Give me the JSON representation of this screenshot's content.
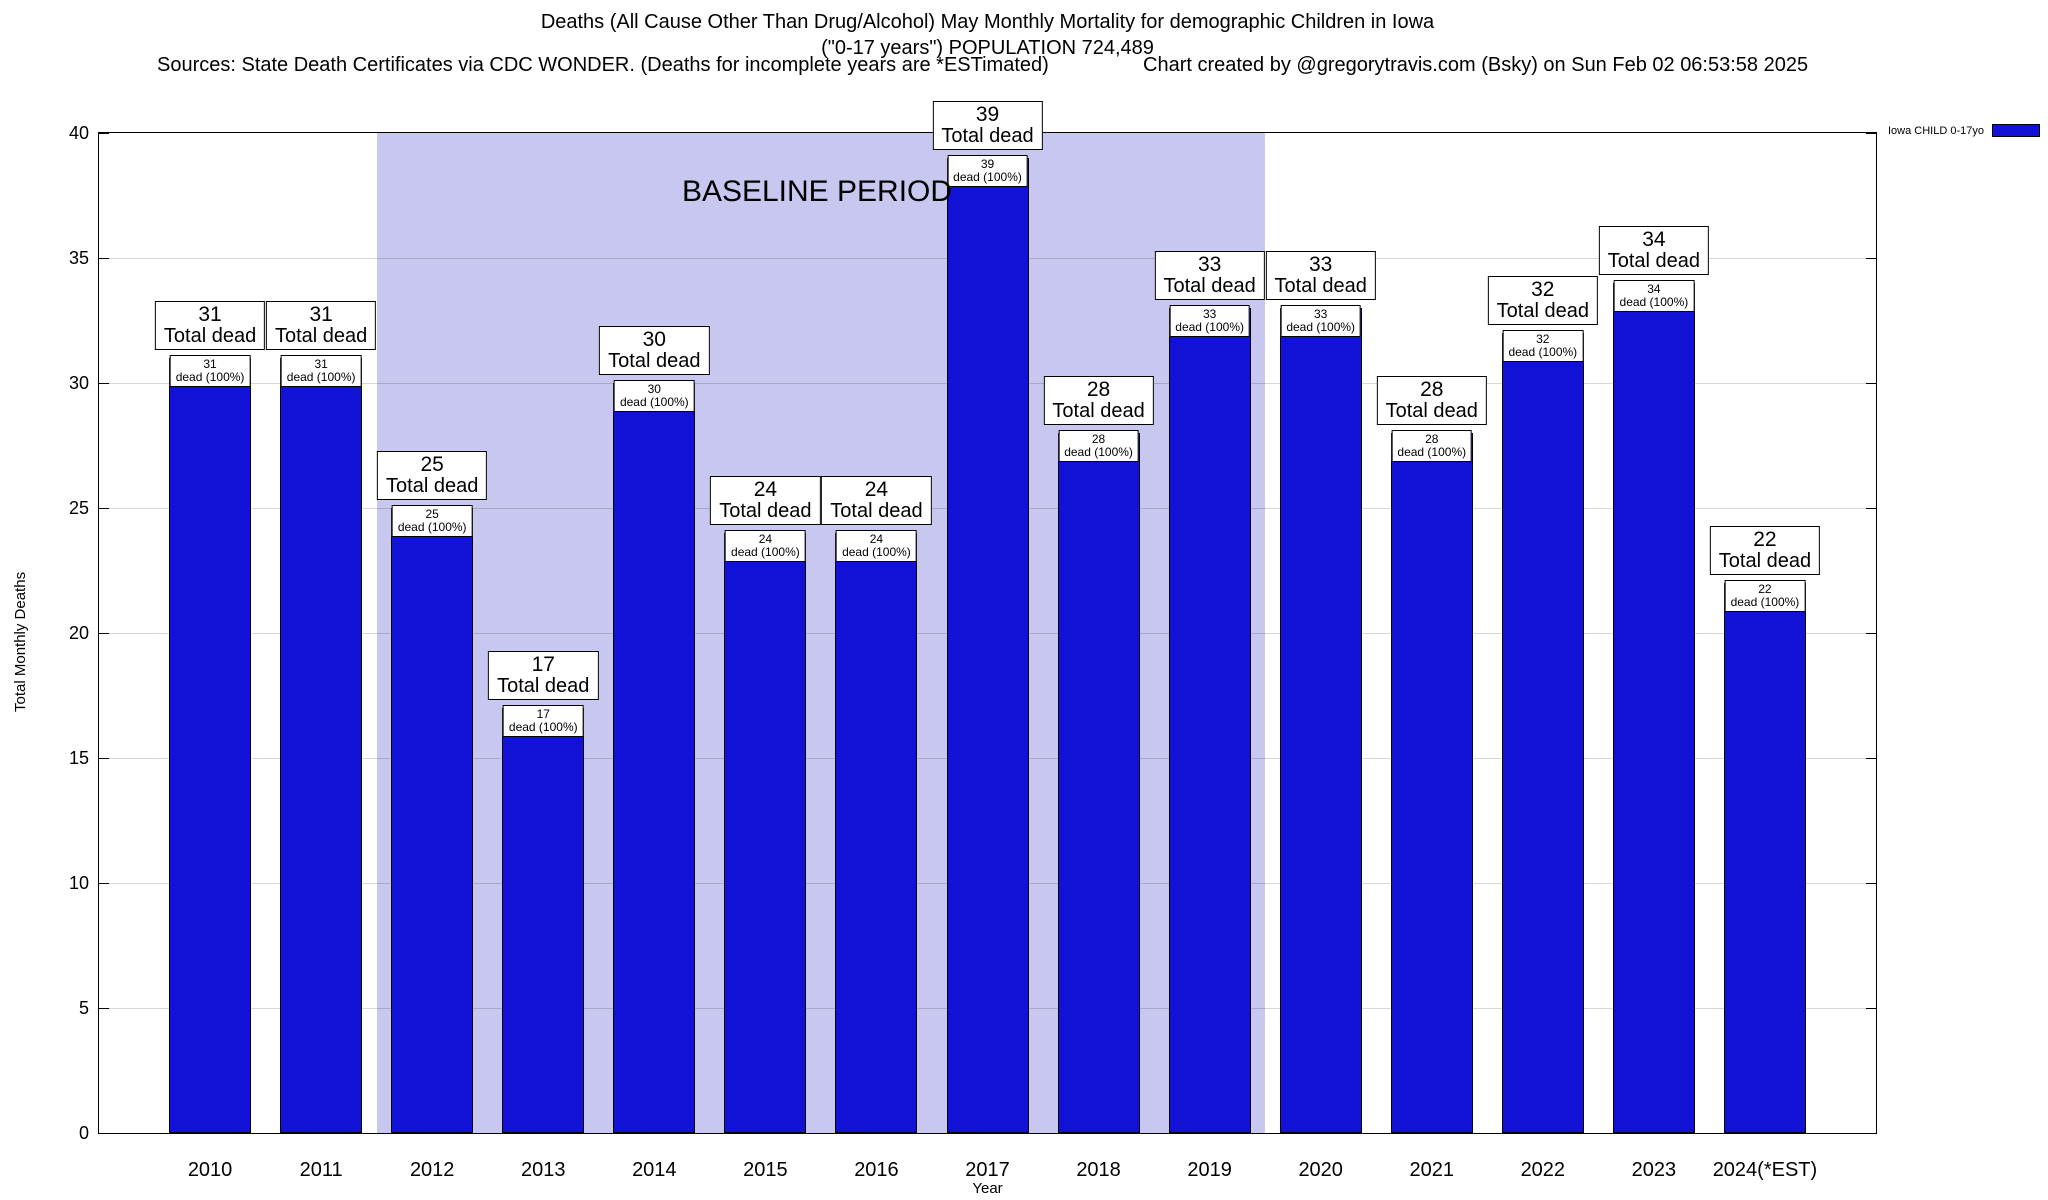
{
  "header": {
    "title_line1": "Deaths (All Cause Other Than Drug/Alcohol) May Monthly Mortality for demographic Children in Iowa",
    "title_line2": "(\"0-17 years\") POPULATION 724,489",
    "sources": "Sources: State Death Certificates via CDC WONDER. (Deaths for incomplete years are *ESTimated)",
    "credit": "Chart created by @gregorytravis.com (Bsky) on Sun Feb 02 06:53:58 2025"
  },
  "legend": {
    "label": "Iowa CHILD 0-17yo",
    "color": "#1212D6"
  },
  "axes": {
    "ylabel": "Total Monthly Deaths",
    "xlabel": "Year",
    "ytick_labels": [
      "0",
      "5",
      "10",
      "15",
      "20",
      "25",
      "30",
      "35",
      "40"
    ],
    "ylim": [
      0,
      40
    ]
  },
  "annotation": {
    "label": "BASELINE PERIOD",
    "region_from_year": "2012",
    "region_to_year": "2019",
    "region_color": "#C7C7F0"
  },
  "bar_labels": {
    "big_suffix": "Total dead",
    "small_suffix": "dead (100%)"
  },
  "chart_data": {
    "type": "bar",
    "title": "Deaths (All Cause Other Than Drug/Alcohol) May Monthly Mortality for demographic Children in Iowa (\"0-17 years\") POPULATION 724,489",
    "categories": [
      "2010",
      "2011",
      "2012",
      "2013",
      "2014",
      "2015",
      "2016",
      "2017",
      "2018",
      "2019",
      "2020",
      "2021",
      "2022",
      "2023",
      "2024(*EST)"
    ],
    "series": [
      {
        "name": "Iowa CHILD 0-17yo",
        "values": [
          31,
          31,
          25,
          17,
          30,
          24,
          24,
          39,
          28,
          33,
          33,
          28,
          32,
          34,
          22
        ]
      }
    ],
    "xlabel": "Year",
    "ylabel": "Total Monthly Deaths",
    "ylim": [
      0,
      40
    ],
    "yticks": [
      0,
      5,
      10,
      15,
      20,
      25,
      30,
      35,
      40
    ],
    "bar_color": "#1212D6",
    "grid": true,
    "legend_position": "top-right",
    "baseline_region": {
      "from": "2012",
      "to": "2019"
    }
  }
}
